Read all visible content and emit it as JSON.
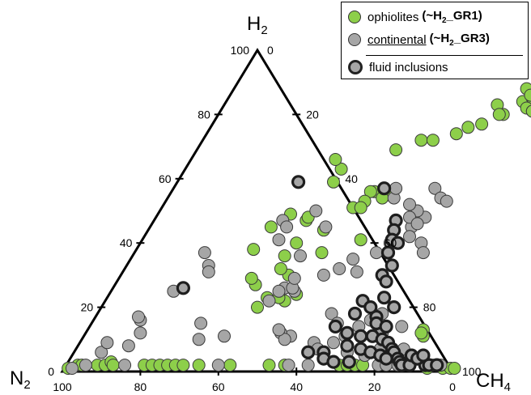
{
  "chart_data": {
    "type": "ternary-scatter",
    "vertices": {
      "top": "H",
      "top_sub": "2",
      "left": "N",
      "left_sub": "2",
      "right": "CH",
      "right_sub": "4"
    },
    "axes": {
      "left_edge_ticks": [
        "100",
        "80",
        "60",
        "40",
        "20",
        "0"
      ],
      "right_edge_ticks": [
        "0",
        "20",
        "40",
        "60",
        "80",
        "100"
      ],
      "bottom_edge_ticks": [
        "100",
        "80",
        "60",
        "40",
        "20",
        "0"
      ]
    },
    "legend": {
      "placement": "top-right",
      "items": [
        {
          "label": "ophiolites",
          "note": "(~H",
          "note_sub": "2",
          "note_end": "_GR1)",
          "color": "#8dcf4a"
        },
        {
          "label": "continental",
          "note": "(~H",
          "note_sub": "2",
          "note_end": "_GR3)",
          "color": "#a6a6a6"
        },
        {
          "label": "fluid inclusions",
          "color": "#a6a6a6",
          "outline": "#222222"
        }
      ]
    },
    "colors": {
      "ophiolites": "#8dcf4a",
      "continental": "#a6a6a6",
      "fluid_inclusions": "#a6a6a6"
    },
    "series": [
      {
        "name": "ophiolites",
        "points": [
          [
            1,
            1
          ],
          [
            3,
            2
          ],
          [
            4,
            2
          ],
          [
            8,
            2
          ],
          [
            10,
            2
          ],
          [
            11,
            3
          ],
          [
            12,
            2
          ],
          [
            20,
            2
          ],
          [
            22,
            2
          ],
          [
            24,
            2
          ],
          [
            26,
            2
          ],
          [
            28,
            2
          ],
          [
            30,
            2
          ],
          [
            34,
            2
          ],
          [
            42,
            2
          ],
          [
            52,
            2
          ],
          [
            56,
            2
          ],
          [
            70,
            2
          ],
          [
            72,
            2
          ],
          [
            74,
            2
          ],
          [
            76,
            2
          ],
          [
            86,
            2
          ],
          [
            92,
            2
          ],
          [
            93,
            1
          ],
          [
            97,
            1
          ],
          [
            99,
            1
          ],
          [
            100,
            1
          ],
          [
            40,
            20
          ],
          [
            46,
            22
          ],
          [
            41,
            23
          ],
          [
            44,
            23
          ],
          [
            48,
            24
          ],
          [
            36,
            27
          ],
          [
            34,
            29
          ],
          [
            43,
            30
          ],
          [
            40,
            32
          ],
          [
            39,
            36
          ],
          [
            48,
            37
          ],
          [
            30,
            38
          ],
          [
            31,
            45
          ],
          [
            39,
            47
          ],
          [
            39,
            48
          ],
          [
            34,
            49
          ],
          [
            56,
            56
          ],
          [
            40,
            59
          ],
          [
            40,
            63
          ],
          [
            37,
            66
          ],
          [
            51,
            69
          ],
          [
            56,
            72
          ],
          [
            59,
            72
          ],
          [
            64,
            74
          ],
          [
            66,
            76
          ],
          [
            69,
            77
          ],
          [
            73,
            80
          ],
          [
            76,
            84
          ],
          [
            78,
            85
          ],
          [
            79,
            85
          ],
          [
            77,
            87
          ],
          [
            82,
            83
          ],
          [
            79,
            83
          ],
          [
            78,
            82
          ],
          [
            80,
            81
          ],
          [
            80,
            81
          ],
          [
            82,
            82
          ],
          [
            84,
            82
          ],
          [
            84,
            80
          ],
          [
            83,
            81
          ],
          [
            81,
            82
          ],
          [
            85,
            79
          ],
          [
            88,
            76
          ],
          [
            75,
            88
          ],
          [
            77,
            86
          ],
          [
            70,
            83
          ],
          [
            72,
            80
          ],
          [
            52,
            56
          ],
          [
            56,
            55
          ],
          [
            51,
            56
          ],
          [
            55,
            54
          ],
          [
            51,
            53
          ],
          [
            49,
            51
          ],
          [
            86,
            13
          ],
          [
            87,
            11
          ],
          [
            86,
            12
          ],
          [
            51,
            51
          ],
          [
            45,
            44
          ],
          [
            40,
            40
          ],
          [
            56,
            41
          ]
        ]
      },
      {
        "name": "continental",
        "points": [
          [
            2,
            1
          ],
          [
            5,
            2
          ],
          [
            15,
            2
          ],
          [
            39,
            2
          ],
          [
            57,
            2
          ],
          [
            62,
            2
          ],
          [
            80,
            2
          ],
          [
            82,
            2
          ],
          [
            88,
            2
          ],
          [
            94,
            2
          ],
          [
            96,
            2
          ],
          [
            7,
            6
          ],
          [
            7,
            9
          ],
          [
            30,
            10
          ],
          [
            36,
            11
          ],
          [
            53,
            11
          ],
          [
            60,
            9
          ],
          [
            65,
            9
          ],
          [
            62,
            7
          ],
          [
            70,
            6
          ],
          [
            75,
            5
          ],
          [
            78,
            7
          ],
          [
            85,
            2
          ],
          [
            83,
            5
          ],
          [
            88,
            4
          ],
          [
            89,
            4
          ],
          [
            42,
            22
          ],
          [
            44,
            26
          ],
          [
            43,
            36
          ],
          [
            45,
            45
          ],
          [
            40,
            50
          ],
          [
            47,
            25
          ],
          [
            52,
            30
          ],
          [
            55,
            32
          ],
          [
            57,
            35
          ],
          [
            60,
            31
          ],
          [
            62,
            37
          ],
          [
            64,
            40
          ],
          [
            67,
            45
          ],
          [
            69,
            48
          ],
          [
            66,
            50
          ],
          [
            58,
            54
          ],
          [
            63,
            52
          ],
          [
            65,
            48
          ],
          [
            68,
            46
          ],
          [
            68,
            42
          ],
          [
            72,
            40
          ],
          [
            74,
            37
          ],
          [
            60,
            18
          ],
          [
            63,
            15
          ],
          [
            67,
            11
          ],
          [
            69,
            14
          ],
          [
            71,
            16
          ],
          [
            73,
            18
          ],
          [
            76,
            12
          ],
          [
            77,
            10
          ],
          [
            80,
            14
          ],
          [
            82,
            6
          ],
          [
            84,
            7
          ],
          [
            50,
            12
          ],
          [
            52,
            10
          ],
          [
            49,
            13
          ],
          [
            43,
            25
          ],
          [
            46,
            26
          ],
          [
            45,
            29
          ],
          [
            57,
            57
          ],
          [
            67,
            57
          ],
          [
            70,
            54
          ],
          [
            72,
            53
          ],
          [
            61,
            99
          ],
          [
            21,
            33
          ],
          [
            16,
            25
          ],
          [
            12,
            16
          ],
          [
            14,
            12
          ],
          [
            11,
            17
          ],
          [
            13,
            8
          ],
          [
            22,
            31
          ],
          [
            18,
            37
          ],
          [
            28,
            15
          ],
          [
            33,
            47
          ],
          [
            35,
            45
          ],
          [
            35,
            41
          ]
        ]
      },
      {
        "name": "fluid inclusions",
        "points": [
          [
            18,
            26
          ],
          [
            31,
            59
          ],
          [
            54,
            57
          ],
          [
            62,
            47
          ],
          [
            63,
            44
          ],
          [
            64,
            41
          ],
          [
            66,
            40
          ],
          [
            65,
            37
          ],
          [
            68,
            33
          ],
          [
            67,
            30
          ],
          [
            69,
            28
          ],
          [
            66,
            22
          ],
          [
            75,
            20
          ],
          [
            72,
            17
          ],
          [
            73,
            15
          ],
          [
            76,
            14
          ],
          [
            71,
            11
          ],
          [
            74,
            11
          ],
          [
            77,
            10
          ],
          [
            79,
            9
          ],
          [
            81,
            7
          ],
          [
            82,
            6
          ],
          [
            84,
            4
          ],
          [
            85,
            3
          ],
          [
            86,
            2
          ],
          [
            88,
            2
          ],
          [
            92,
            2
          ],
          [
            93,
            2
          ],
          [
            95,
            2
          ],
          [
            60,
            6
          ],
          [
            64,
            6
          ],
          [
            69,
            8
          ],
          [
            73,
            7
          ],
          [
            76,
            6
          ],
          [
            79,
            5
          ],
          [
            81,
            4
          ],
          [
            87,
            5
          ],
          [
            89,
            4
          ],
          [
            90,
            5
          ],
          [
            65,
            4
          ],
          [
            68,
            3
          ],
          [
            72,
            3
          ],
          [
            67,
            12
          ],
          [
            63,
            14
          ],
          [
            66,
            18
          ],
          [
            69,
            20
          ],
          [
            71,
            23
          ]
        ]
      }
    ]
  }
}
